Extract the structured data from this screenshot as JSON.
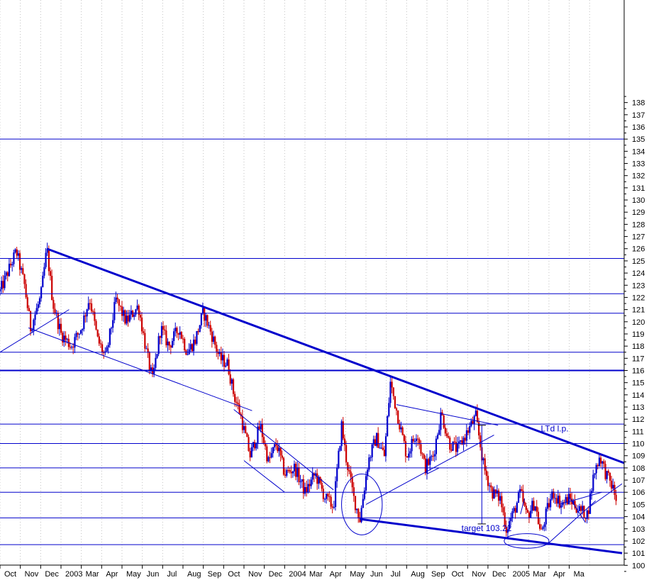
{
  "chart_data": {
    "type": "candlestick",
    "title": "",
    "xlabel": "",
    "ylabel": "",
    "ylim": [
      99,
      138.6
    ],
    "y_ticks": [
      100,
      101,
      102,
      103,
      104,
      105,
      106,
      107,
      108,
      109,
      110,
      111,
      112,
      113,
      114,
      115,
      116,
      117,
      118,
      119,
      120,
      121,
      122,
      123,
      124,
      125,
      126,
      127,
      128,
      129,
      130,
      131,
      132,
      133,
      134,
      135,
      136,
      137,
      138
    ],
    "x_labels": [
      "Oct",
      "Nov",
      "Dec",
      "2003",
      "Mar",
      "Apr",
      "May",
      "Jun",
      "Jul",
      "Aug",
      "Sep",
      "Oct",
      "Nov",
      "Dec",
      "2004",
      "Mar",
      "Apr",
      "May",
      "Jun",
      "Jul",
      "Aug",
      "Sep",
      "Oct",
      "Nov",
      "Dec",
      "2005",
      "Mar",
      "Apr",
      "Ma"
    ],
    "x_range": [
      0,
      30.7
    ],
    "grid": "vertical dotted",
    "colors": {
      "up": "#0000cc",
      "down": "#cc0000",
      "lines": "#0000cc",
      "grid": "#c0c0c0",
      "axis": "#000000"
    },
    "price_path": [
      [
        0.0,
        122.5
      ],
      [
        0.8,
        125.8
      ],
      [
        1.2,
        123.0
      ],
      [
        1.5,
        119.5
      ],
      [
        2.0,
        122.0
      ],
      [
        2.3,
        126.0
      ],
      [
        2.6,
        121.5
      ],
      [
        3.0,
        119.0
      ],
      [
        3.5,
        118.0
      ],
      [
        4.0,
        119.5
      ],
      [
        4.4,
        122.0
      ],
      [
        4.8,
        118.5
      ],
      [
        5.2,
        117.0
      ],
      [
        5.7,
        121.8
      ],
      [
        6.2,
        120.0
      ],
      [
        6.8,
        121.3
      ],
      [
        7.2,
        117.5
      ],
      [
        7.5,
        115.2
      ],
      [
        7.9,
        119.5
      ],
      [
        8.3,
        118.0
      ],
      [
        8.8,
        119.5
      ],
      [
        9.2,
        117.5
      ],
      [
        9.6,
        118.5
      ],
      [
        10.0,
        120.8
      ],
      [
        10.4,
        119.0
      ],
      [
        10.8,
        117.0
      ],
      [
        11.2,
        116.5
      ],
      [
        11.5,
        114.0
      ],
      [
        11.8,
        112.5
      ],
      [
        12.3,
        109.0
      ],
      [
        12.8,
        111.5
      ],
      [
        13.2,
        108.5
      ],
      [
        13.6,
        110.0
      ],
      [
        14.0,
        107.5
      ],
      [
        14.5,
        108.0
      ],
      [
        15.0,
        106.0
      ],
      [
        15.5,
        107.5
      ],
      [
        16.0,
        105.5
      ],
      [
        16.4,
        104.8
      ],
      [
        16.8,
        111.5
      ],
      [
        17.0,
        109.0
      ],
      [
        17.4,
        105.5
      ],
      [
        17.7,
        103.8
      ],
      [
        18.1,
        108.5
      ],
      [
        18.5,
        110.5
      ],
      [
        18.9,
        109.0
      ],
      [
        19.2,
        115.0
      ],
      [
        19.6,
        112.0
      ],
      [
        20.0,
        109.0
      ],
      [
        20.5,
        111.0
      ],
      [
        20.9,
        108.0
      ],
      [
        21.3,
        109.0
      ],
      [
        21.7,
        112.5
      ],
      [
        22.1,
        110.0
      ],
      [
        22.5,
        109.5
      ],
      [
        23.0,
        111.0
      ],
      [
        23.4,
        112.2
      ],
      [
        23.8,
        108.0
      ],
      [
        24.2,
        106.0
      ],
      [
        24.6,
        105.5
      ],
      [
        24.9,
        103.0
      ],
      [
        25.3,
        104.5
      ],
      [
        25.6,
        106.0
      ],
      [
        25.9,
        104.0
      ],
      [
        26.3,
        105.2
      ],
      [
        26.6,
        102.5
      ],
      [
        26.9,
        104.5
      ],
      [
        27.2,
        106.0
      ],
      [
        27.6,
        105.0
      ],
      [
        28.0,
        105.5
      ],
      [
        28.5,
        104.5
      ],
      [
        28.9,
        104.2
      ],
      [
        29.2,
        107.5
      ],
      [
        29.5,
        109.0
      ],
      [
        29.8,
        107.5
      ],
      [
        30.1,
        106.5
      ],
      [
        30.3,
        105.5
      ]
    ],
    "series": [
      {
        "kind": "horizontal",
        "levels": [
          135,
          125.2,
          122.3,
          120.7,
          117.5,
          116,
          111.6,
          110,
          108,
          106,
          103.9,
          101.7
        ]
      },
      {
        "kind": "trendline",
        "segments": [
          [
            2.3,
            126.0,
            30.7,
            108.4
          ],
          [
            17.7,
            103.8,
            30.6,
            101.0
          ],
          [
            1.4,
            119.5,
            12.4,
            112.7
          ],
          [
            0.0,
            117.5,
            3.4,
            121.0
          ],
          [
            11.5,
            112.8,
            16.4,
            106.2
          ],
          [
            12.0,
            108.6,
            14.0,
            106.0
          ],
          [
            19.5,
            113.2,
            24.5,
            111.5
          ],
          [
            18.0,
            105.0,
            24.3,
            110.7
          ],
          [
            21.0,
            107.5,
            21.6,
            108.0
          ],
          [
            26.9,
            101.7,
            29.3,
            105.3
          ],
          [
            28.0,
            105.6,
            28.8,
            103.5
          ],
          [
            25.6,
            104.2,
            25.8,
            105.5
          ],
          [
            27.5,
            105.0,
            29.6,
            106.0
          ],
          [
            29.0,
            104.8,
            30.6,
            106.7
          ],
          [
            23.7,
            103.4,
            23.7,
            111.5
          ]
        ]
      },
      {
        "kind": "ellipse",
        "items": [
          [
            17.8,
            105.0,
            1.0,
            2.5
          ],
          [
            25.9,
            102.0,
            1.1,
            0.6
          ]
        ]
      }
    ],
    "annotations": [
      {
        "text": "target 103.22",
        "x": 22.7,
        "y": 102.8
      },
      {
        "text": "LTd l.p.",
        "x": 26.6,
        "y": 111.0
      }
    ]
  }
}
